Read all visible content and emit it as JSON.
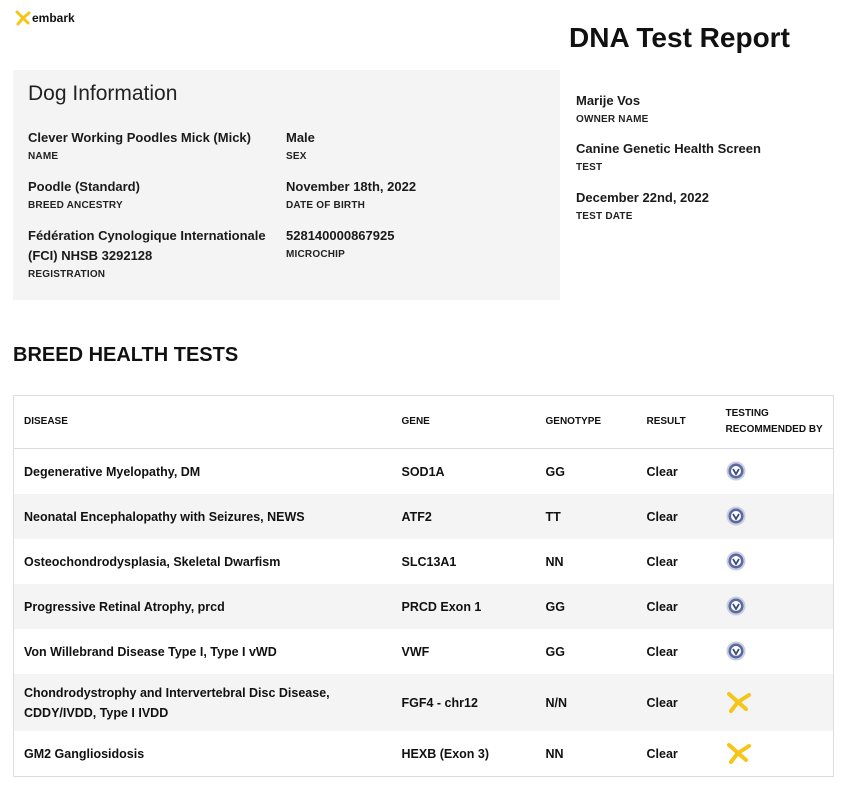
{
  "header": {
    "logo": "embark",
    "title": "DNA Test Report"
  },
  "dog_info": {
    "heading": "Dog Information",
    "fields": [
      {
        "value": "Clever Working Poodles Mick (Mick)",
        "label": "NAME"
      },
      {
        "value": "Male",
        "label": "SEX"
      },
      {
        "value": "Poodle (Standard)",
        "label": "BREED ANCESTRY"
      },
      {
        "value": "November 18th, 2022",
        "label": "DATE OF BIRTH"
      },
      {
        "value": "Fédération Cynologique Internationale (FCI) NHSB 3292128",
        "label": "REGISTRATION"
      },
      {
        "value": "528140000867925",
        "label": "MICROCHIP"
      }
    ]
  },
  "owner": {
    "fields": [
      {
        "value": "Marije Vos",
        "label": "OWNER NAME"
      },
      {
        "value": "Canine Genetic Health Screen",
        "label": "TEST"
      },
      {
        "value": "December 22nd, 2022",
        "label": "TEST DATE"
      }
    ]
  },
  "health": {
    "heading": "BREED HEALTH TESTS",
    "columns": [
      "DISEASE",
      "GENE",
      "GENOTYPE",
      "RESULT",
      "TESTING RECOMMENDED BY"
    ],
    "rows": [
      [
        "Degenerative Myelopathy, DM",
        "SOD1A",
        "GG",
        "Clear"
      ],
      [
        "Neonatal Encephalopathy with Seizures, NEWS",
        "ATF2",
        "TT",
        "Clear"
      ],
      [
        "Osteochondrodysplasia, Skeletal Dwarfism",
        "SLC13A1",
        "NN",
        "Clear"
      ],
      [
        "Progressive Retinal Atrophy, prcd",
        "PRCD Exon 1",
        "GG",
        "Clear"
      ],
      [
        "Von Willebrand Disease Type I, Type I vWD",
        "VWF",
        "GG",
        "Clear"
      ],
      [
        "Chondrodystrophy and Intervertebral Disc Disease, CDDY/IVDD, Type I IVDD",
        "FGF4 - chr12",
        "N/N",
        "Clear"
      ],
      [
        "GM2 Gangliosidosis",
        "HEXB (Exon 3)",
        "NN",
        "Clear"
      ]
    ]
  }
}
